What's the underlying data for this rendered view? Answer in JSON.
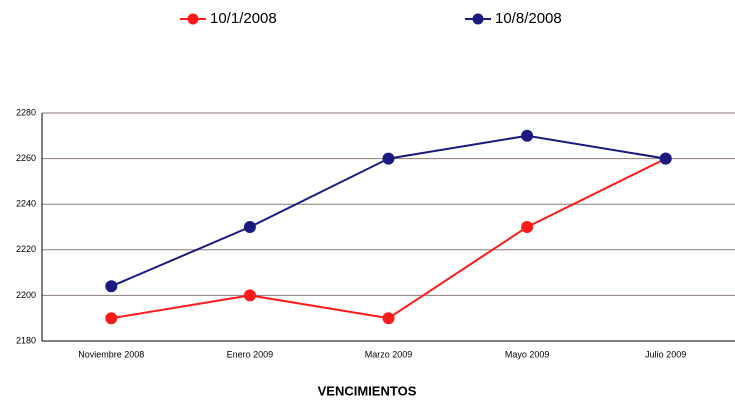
{
  "chart_data": {
    "type": "line",
    "x_label": "VENCIMIENTOS",
    "categories": [
      "Noviembre 2008",
      "Enero 2009",
      "Marzo 2009",
      "Mayo 2009",
      "Julio 2009"
    ],
    "series": [
      {
        "name": "10/1/2008",
        "color": "#ff1a1a",
        "values": [
          2190,
          2200,
          2190,
          2230,
          2260
        ]
      },
      {
        "name": "10/8/2008",
        "color": "#1a1a80",
        "values": [
          2204,
          2230,
          2260,
          2270,
          2260
        ]
      }
    ],
    "ylim": [
      2180,
      2280
    ],
    "yticks": [
      2180,
      2200,
      2220,
      2240,
      2260,
      2280
    ],
    "grid": true,
    "legend": "top"
  }
}
